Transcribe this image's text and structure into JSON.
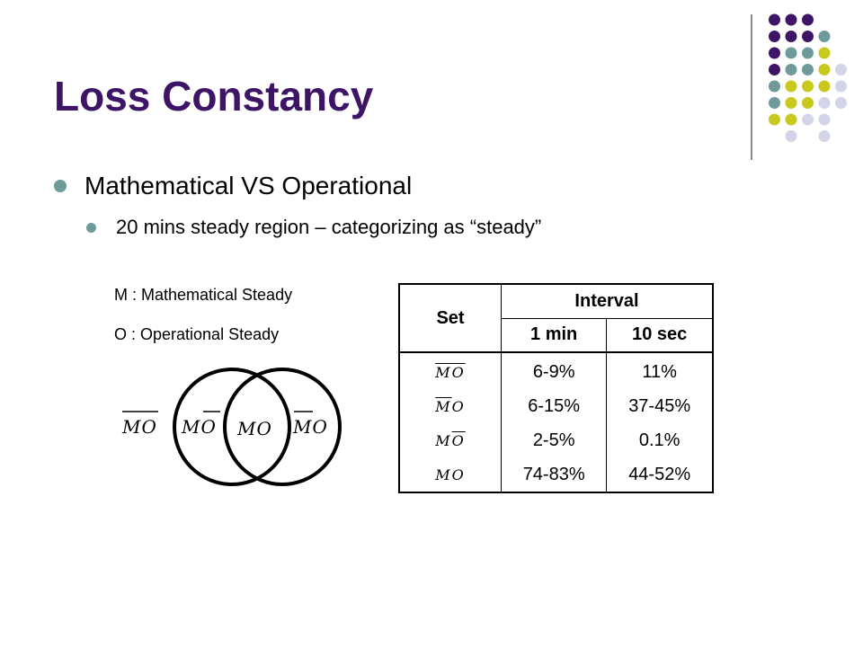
{
  "slide": {
    "title": "Loss Constancy",
    "bullets": [
      {
        "text": "Mathematical VS Operational"
      },
      {
        "text": "20 mins steady region – categorizing as “steady”"
      }
    ]
  },
  "legend": {
    "m": "M : Mathematical Steady",
    "o": "O : Operational Steady"
  },
  "venn": {
    "left_outside": "MO",
    "left_only": "MO",
    "both": "MO",
    "right_only": "MO"
  },
  "table": {
    "set_header": "Set",
    "interval_header": "Interval",
    "col_1min": "1 min",
    "col_10sec": "10 sec",
    "rows": [
      {
        "set": "MO",
        "min1": "6-9%",
        "sec10": "11%"
      },
      {
        "set": "MO",
        "min1": "6-15%",
        "sec10": "37-45%"
      },
      {
        "set": "MO",
        "min1": "2-5%",
        "sec10": "0.1%"
      },
      {
        "set": "MO",
        "min1": "74-83%",
        "sec10": "44-52%"
      }
    ]
  },
  "colors": {
    "title": "#3d1466",
    "dot_purple": "#3d1466",
    "dot_teal": "#6e9a9a",
    "dot_olive": "#c8c81e",
    "dot_lavender": "#d4d4e8",
    "bullet": "#6e9a9a"
  }
}
